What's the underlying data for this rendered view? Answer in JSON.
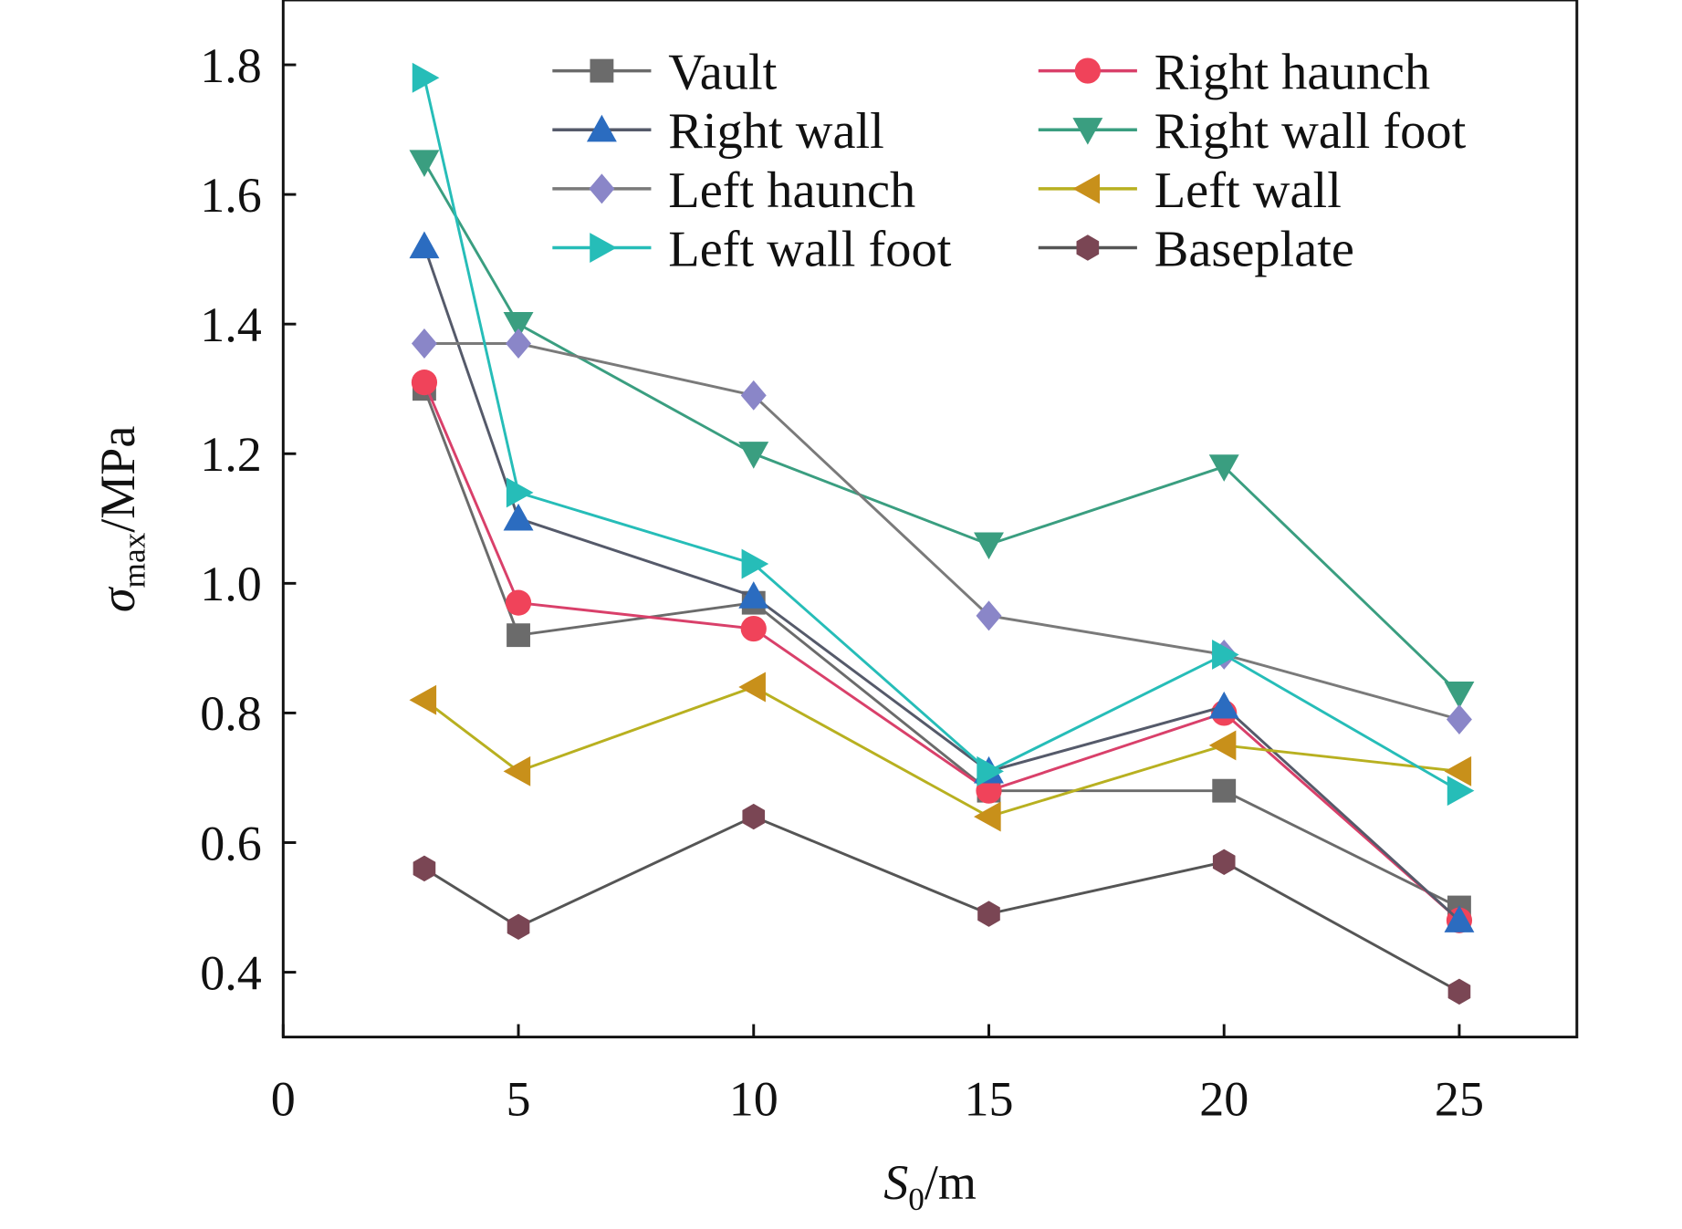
{
  "chart_data": {
    "type": "line",
    "xlabel": "S0/m",
    "xlabel_main": "S",
    "xlabel_sub": "0",
    "xlabel_unit": "/m",
    "ylabel_main": "σ",
    "ylabel_sub": "max",
    "ylabel_unit": "/MPa",
    "xlim": [
      0,
      27.5
    ],
    "ylim": [
      0.3,
      1.9
    ],
    "xticks": [
      0,
      5,
      10,
      15,
      20,
      25
    ],
    "yticks": [
      0.4,
      0.6,
      0.8,
      1.0,
      1.2,
      1.4,
      1.6,
      1.8
    ],
    "ytick_labels": [
      "0.4",
      "0.6",
      "0.8",
      "1.0",
      "1.2",
      "1.4",
      "1.6",
      "1.8"
    ],
    "grid": false,
    "legend_position": "top-right",
    "x": [
      3,
      5,
      10,
      15,
      20,
      25
    ],
    "series": [
      {
        "name": "Vault",
        "marker": "square",
        "color": "#6b6b6b",
        "line": "#6b6b6b",
        "values": [
          1.3,
          0.92,
          0.97,
          0.68,
          0.68,
          0.5
        ]
      },
      {
        "name": "Right haunch",
        "marker": "circle",
        "color": "#f0435a",
        "line": "#d9406a",
        "values": [
          1.31,
          0.97,
          0.93,
          0.68,
          0.8,
          0.48
        ]
      },
      {
        "name": "Right wall",
        "marker": "triangle-up",
        "color": "#2b6cc0",
        "line": "#555a6a",
        "values": [
          1.52,
          1.1,
          0.98,
          0.71,
          0.81,
          0.48
        ]
      },
      {
        "name": "Right wall foot",
        "marker": "triangle-down",
        "color": "#3a9e80",
        "line": "#3a9e80",
        "values": [
          1.65,
          1.4,
          1.2,
          1.06,
          1.18,
          0.83
        ]
      },
      {
        "name": "Left haunch",
        "marker": "diamond",
        "color": "#8a86c8",
        "line": "#7a7a7a",
        "values": [
          1.37,
          1.37,
          1.29,
          0.95,
          0.89,
          0.79
        ]
      },
      {
        "name": "Left wall",
        "marker": "triangle-left",
        "color": "#c8901a",
        "line": "#b8b020",
        "values": [
          0.82,
          0.71,
          0.84,
          0.64,
          0.75,
          0.71
        ]
      },
      {
        "name": "Left wall foot",
        "marker": "triangle-right",
        "color": "#26bdb8",
        "line": "#26bdb8",
        "values": [
          1.78,
          1.14,
          1.03,
          0.71,
          0.89,
          0.68
        ]
      },
      {
        "name": "Baseplate",
        "marker": "hexagon",
        "color": "#7a4654",
        "line": "#555555",
        "values": [
          0.56,
          0.47,
          0.64,
          0.49,
          0.57,
          0.37
        ]
      }
    ]
  }
}
